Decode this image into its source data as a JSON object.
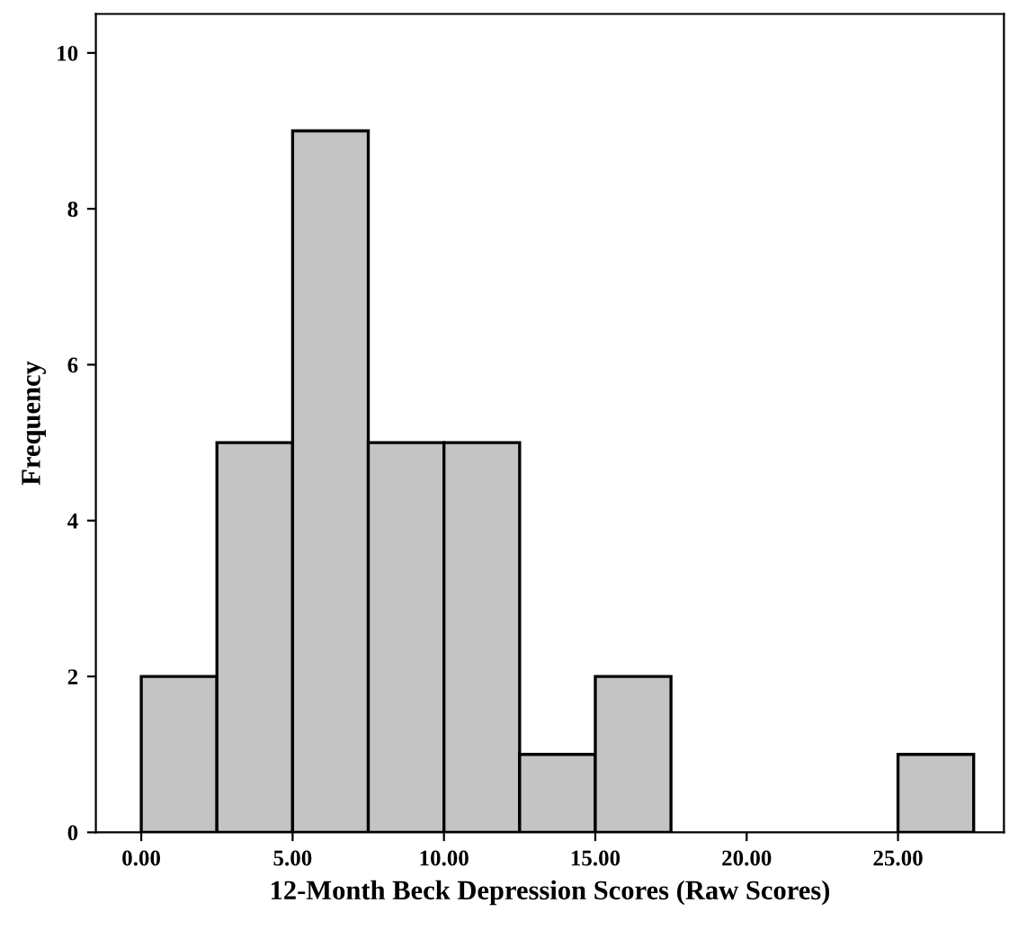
{
  "chart_data": {
    "type": "histogram",
    "xlabel": "12-Month Beck Depression Scores (Raw Scores)",
    "ylabel": "Frequency",
    "bins": [
      0,
      2.5,
      5,
      7.5,
      10,
      12.5,
      15,
      17.5,
      20,
      22.5,
      25,
      27.5
    ],
    "values": [
      2,
      5,
      9,
      5,
      5,
      1,
      2,
      0,
      0,
      0,
      1
    ],
    "color": "#c4c4c4",
    "xlim": [
      -1.5,
      28.5
    ],
    "ylim": [
      0,
      10.5
    ],
    "xticks": [
      {
        "value": 0,
        "label": "0.00"
      },
      {
        "value": 5,
        "label": "5.00"
      },
      {
        "value": 10,
        "label": "10.00"
      },
      {
        "value": 15,
        "label": "15.00"
      },
      {
        "value": 20,
        "label": "20.00"
      },
      {
        "value": 25,
        "label": "25.00"
      }
    ],
    "yticks": [
      0,
      2,
      4,
      6,
      8,
      10
    ],
    "grid": false,
    "legend": false
  }
}
